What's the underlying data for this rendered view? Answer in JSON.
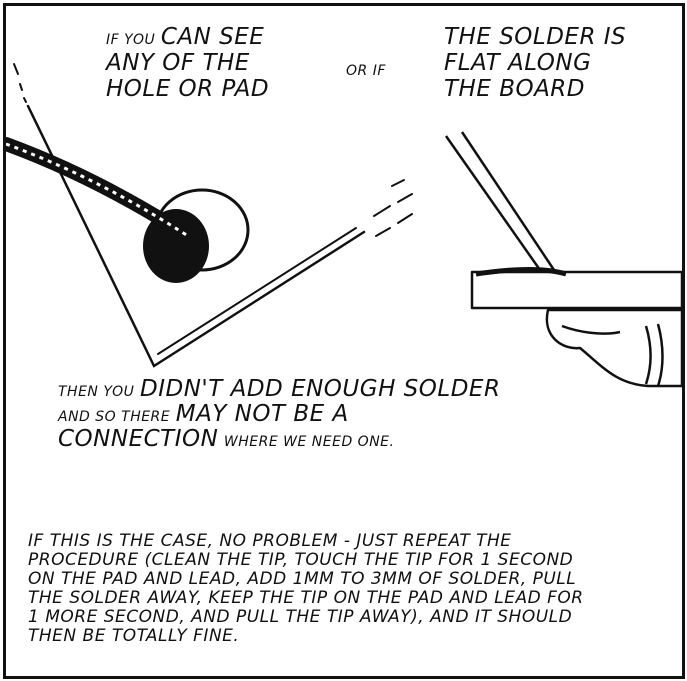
{
  "caption_left": {
    "line1_small": "If you",
    "line1_big": "can see",
    "line2": "any of the",
    "line3": "hole or pad"
  },
  "caption_or": "or if",
  "caption_right": {
    "line1": "the solder is",
    "line2": "flat along",
    "line3": "the board"
  },
  "caption_middle": {
    "l1_small": "Then you",
    "l1_big": "didn't add enough solder",
    "l2_small": "and so there",
    "l2_big": "may not be a",
    "l3_big": "connection",
    "l3_small": "where we need one."
  },
  "caption_bottom": {
    "lines": [
      "If this is the case, no problem - just repeat the",
      "procedure (clean the tip, touch the tip for 1 second",
      "on the pad and lead, add 1mm to 3mm of solder, pull",
      "the solder away, keep the tip on the pad and lead for",
      "1 more second, and pull the tip away), and it should",
      "then be totally fine."
    ]
  },
  "colors": {
    "ink": "#111111",
    "paper": "#ffffff"
  }
}
